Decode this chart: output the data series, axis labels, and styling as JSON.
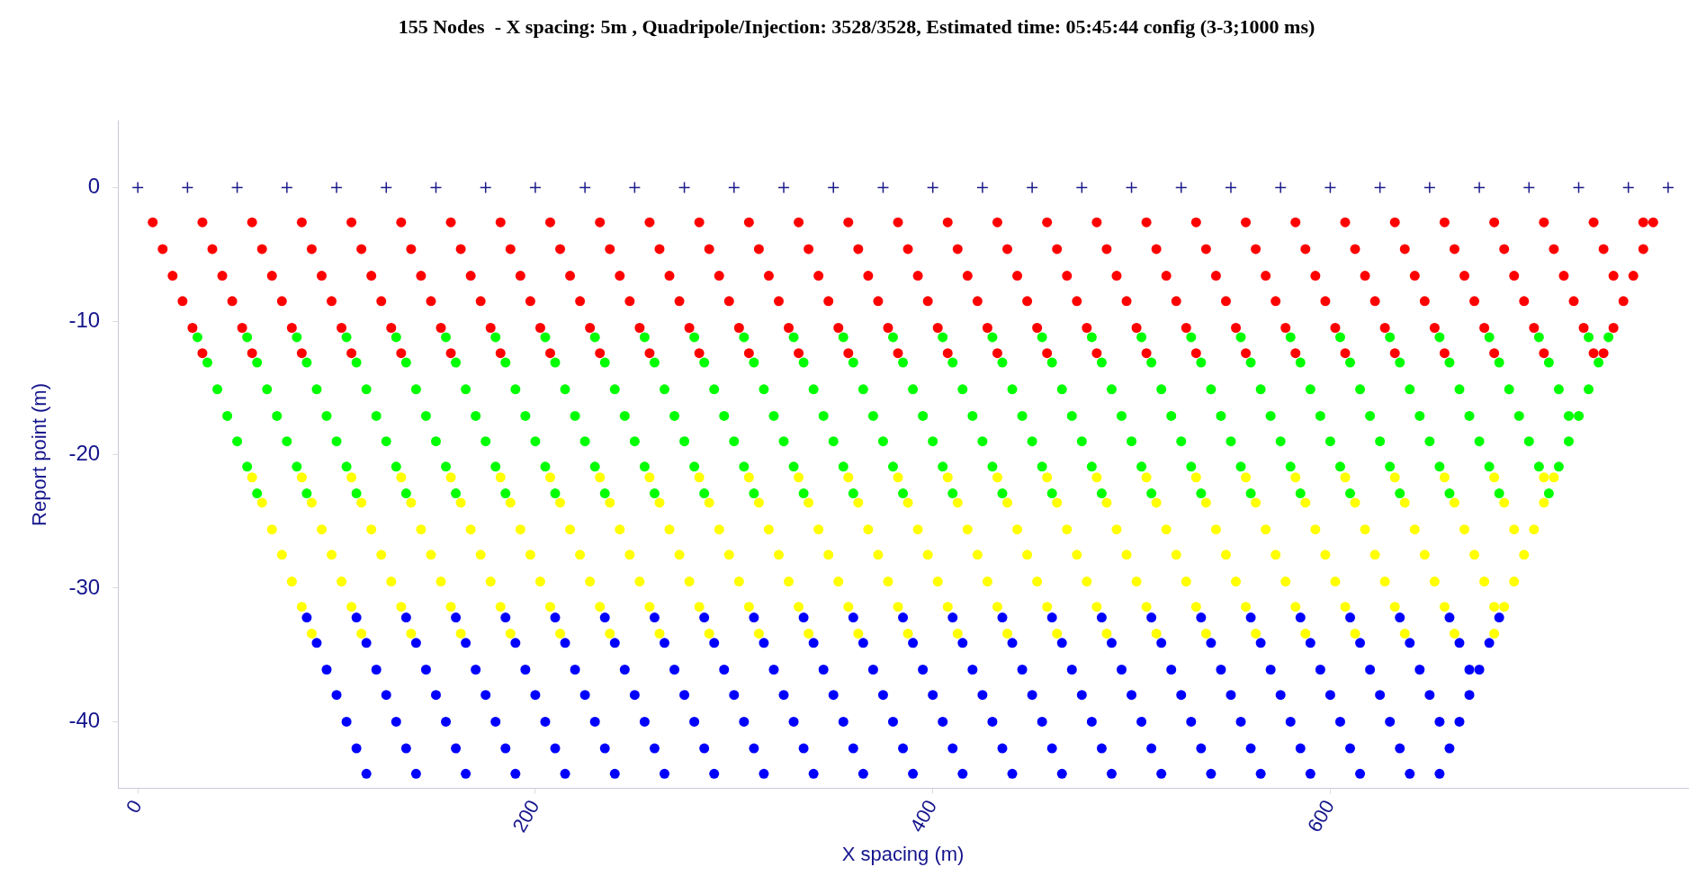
{
  "chart_data": {
    "type": "scatter",
    "title": "155 Nodes  - X spacing: 5m , Quadripole/Injection: 3528/3528, Estimated time: 05:45:44 config (3-3;1000 ms)",
    "xlabel": "X spacing (m)",
    "ylabel": "Report point (m)",
    "xlim": [
      -10,
      780
    ],
    "xticks": [
      0,
      200,
      400,
      600
    ],
    "ylim": [
      -45,
      5
    ],
    "yticks": [
      0,
      -10,
      -20,
      -30,
      -40
    ],
    "marker": "circle",
    "series": [
      {
        "color": "#1c1c8c",
        "marker": "cross",
        "x": [
          0,
          25,
          50,
          75,
          100,
          125,
          150,
          175,
          200,
          225,
          250,
          275,
          300,
          325,
          350,
          375,
          400,
          425,
          450,
          475,
          500,
          525,
          550,
          575,
          600,
          625,
          650,
          675,
          700,
          725,
          750,
          770
        ],
        "values": [
          0,
          0,
          0,
          0,
          0,
          0,
          0,
          0,
          0,
          0,
          0,
          0,
          0,
          0,
          0,
          0,
          0,
          0,
          0,
          0,
          0,
          0,
          0,
          0,
          0,
          0,
          0,
          0,
          0,
          0,
          0,
          0
        ]
      },
      {
        "color": "#ff0000",
        "x": [
          7.5,
          32.5,
          57.5,
          82.5,
          107.5,
          132.5,
          157.5,
          182.5,
          207.5,
          232.5,
          257.5,
          282.5,
          307.5,
          332.5,
          357.5,
          382.5,
          407.5,
          432.5,
          457.5,
          482.5,
          507.5,
          532.5,
          557.5,
          582.5,
          607.5,
          632.5,
          657.5,
          682.5,
          707.5,
          732.5,
          757.5,
          762.5
        ],
        "values": [
          -2.6,
          -2.6,
          -2.6,
          -2.6,
          -2.6,
          -2.6,
          -2.6,
          -2.6,
          -2.6,
          -2.6,
          -2.6,
          -2.6,
          -2.6,
          -2.6,
          -2.6,
          -2.6,
          -2.6,
          -2.6,
          -2.6,
          -2.6,
          -2.6,
          -2.6,
          -2.6,
          -2.6,
          -2.6,
          -2.6,
          -2.6,
          -2.6,
          -2.6,
          -2.6,
          -2.6,
          -2.6
        ]
      },
      {
        "color": "#ff0000",
        "x": [
          12.5,
          37.5,
          62.5,
          87.5,
          112.5,
          137.5,
          162.5,
          187.5,
          212.5,
          237.5,
          262.5,
          287.5,
          312.5,
          337.5,
          362.5,
          387.5,
          412.5,
          437.5,
          462.5,
          487.5,
          512.5,
          537.5,
          562.5,
          587.5,
          612.5,
          637.5,
          662.5,
          687.5,
          712.5,
          737.5,
          757.5
        ],
        "values": [
          -4.6,
          -4.6,
          -4.6,
          -4.6,
          -4.6,
          -4.6,
          -4.6,
          -4.6,
          -4.6,
          -4.6,
          -4.6,
          -4.6,
          -4.6,
          -4.6,
          -4.6,
          -4.6,
          -4.6,
          -4.6,
          -4.6,
          -4.6,
          -4.6,
          -4.6,
          -4.6,
          -4.6,
          -4.6,
          -4.6,
          -4.6,
          -4.6,
          -4.6,
          -4.6,
          -4.6
        ]
      },
      {
        "color": "#ff0000",
        "x": [
          17.5,
          42.5,
          67.5,
          92.5,
          117.5,
          142.5,
          167.5,
          192.5,
          217.5,
          242.5,
          267.5,
          292.5,
          317.5,
          342.5,
          367.5,
          392.5,
          417.5,
          442.5,
          467.5,
          492.5,
          517.5,
          542.5,
          567.5,
          592.5,
          617.5,
          642.5,
          667.5,
          692.5,
          717.5,
          742.5,
          752.5
        ],
        "values": [
          -6.6,
          -6.6,
          -6.6,
          -6.6,
          -6.6,
          -6.6,
          -6.6,
          -6.6,
          -6.6,
          -6.6,
          -6.6,
          -6.6,
          -6.6,
          -6.6,
          -6.6,
          -6.6,
          -6.6,
          -6.6,
          -6.6,
          -6.6,
          -6.6,
          -6.6,
          -6.6,
          -6.6,
          -6.6,
          -6.6,
          -6.6,
          -6.6,
          -6.6,
          -6.6,
          -6.6
        ]
      },
      {
        "color": "#ff0000",
        "x": [
          22.5,
          47.5,
          72.5,
          97.5,
          122.5,
          147.5,
          172.5,
          197.5,
          222.5,
          247.5,
          272.5,
          297.5,
          322.5,
          347.5,
          372.5,
          397.5,
          422.5,
          447.5,
          472.5,
          497.5,
          522.5,
          547.5,
          572.5,
          597.5,
          622.5,
          647.5,
          672.5,
          697.5,
          722.5,
          747.5
        ],
        "values": [
          -8.5,
          -8.5,
          -8.5,
          -8.5,
          -8.5,
          -8.5,
          -8.5,
          -8.5,
          -8.5,
          -8.5,
          -8.5,
          -8.5,
          -8.5,
          -8.5,
          -8.5,
          -8.5,
          -8.5,
          -8.5,
          -8.5,
          -8.5,
          -8.5,
          -8.5,
          -8.5,
          -8.5,
          -8.5,
          -8.5,
          -8.5,
          -8.5,
          -8.5,
          -8.5
        ]
      },
      {
        "color": "#ff0000",
        "x": [
          27.5,
          52.5,
          77.5,
          102.5,
          127.5,
          152.5,
          177.5,
          202.5,
          227.5,
          252.5,
          277.5,
          302.5,
          327.5,
          352.5,
          377.5,
          402.5,
          427.5,
          452.5,
          477.5,
          502.5,
          527.5,
          552.5,
          577.5,
          602.5,
          627.5,
          652.5,
          677.5,
          702.5,
          727.5,
          742.5
        ],
        "values": [
          -10.5,
          -10.5,
          -10.5,
          -10.5,
          -10.5,
          -10.5,
          -10.5,
          -10.5,
          -10.5,
          -10.5,
          -10.5,
          -10.5,
          -10.5,
          -10.5,
          -10.5,
          -10.5,
          -10.5,
          -10.5,
          -10.5,
          -10.5,
          -10.5,
          -10.5,
          -10.5,
          -10.5,
          -10.5,
          -10.5,
          -10.5,
          -10.5,
          -10.5,
          -10.5
        ]
      },
      {
        "color": "#ff0000",
        "x": [
          32.5,
          57.5,
          82.5,
          107.5,
          132.5,
          157.5,
          182.5,
          207.5,
          232.5,
          257.5,
          282.5,
          307.5,
          332.5,
          357.5,
          382.5,
          407.5,
          432.5,
          457.5,
          482.5,
          507.5,
          532.5,
          557.5,
          582.5,
          607.5,
          632.5,
          657.5,
          682.5,
          707.5,
          732.5,
          737.5
        ],
        "values": [
          -12.4,
          -12.4,
          -12.4,
          -12.4,
          -12.4,
          -12.4,
          -12.4,
          -12.4,
          -12.4,
          -12.4,
          -12.4,
          -12.4,
          -12.4,
          -12.4,
          -12.4,
          -12.4,
          -12.4,
          -12.4,
          -12.4,
          -12.4,
          -12.4,
          -12.4,
          -12.4,
          -12.4,
          -12.4,
          -12.4,
          -12.4,
          -12.4,
          -12.4,
          -12.4
        ]
      },
      {
        "color": "#00ff00",
        "x": [
          30,
          55,
          80,
          105,
          130,
          155,
          180,
          205,
          230,
          255,
          280,
          305,
          330,
          355,
          380,
          405,
          430,
          455,
          480,
          505,
          530,
          555,
          580,
          605,
          630,
          655,
          680,
          705,
          730,
          740
        ],
        "values": [
          -11.2,
          -11.2,
          -11.2,
          -11.2,
          -11.2,
          -11.2,
          -11.2,
          -11.2,
          -11.2,
          -11.2,
          -11.2,
          -11.2,
          -11.2,
          -11.2,
          -11.2,
          -11.2,
          -11.2,
          -11.2,
          -11.2,
          -11.2,
          -11.2,
          -11.2,
          -11.2,
          -11.2,
          -11.2,
          -11.2,
          -11.2,
          -11.2,
          -11.2,
          -11.2
        ]
      },
      {
        "color": "#00ff00",
        "x": [
          35,
          60,
          85,
          110,
          135,
          160,
          185,
          210,
          235,
          260,
          285,
          310,
          335,
          360,
          385,
          410,
          435,
          460,
          485,
          510,
          535,
          560,
          585,
          610,
          635,
          660,
          685,
          710,
          735
        ],
        "values": [
          -13.1,
          -13.1,
          -13.1,
          -13.1,
          -13.1,
          -13.1,
          -13.1,
          -13.1,
          -13.1,
          -13.1,
          -13.1,
          -13.1,
          -13.1,
          -13.1,
          -13.1,
          -13.1,
          -13.1,
          -13.1,
          -13.1,
          -13.1,
          -13.1,
          -13.1,
          -13.1,
          -13.1,
          -13.1,
          -13.1,
          -13.1,
          -13.1,
          -13.1
        ]
      },
      {
        "color": "#00ff00",
        "x": [
          40,
          65,
          90,
          115,
          140,
          165,
          190,
          215,
          240,
          265,
          290,
          315,
          340,
          365,
          390,
          415,
          440,
          465,
          490,
          515,
          540,
          565,
          590,
          615,
          640,
          665,
          690,
          715,
          730
        ],
        "values": [
          -15.1,
          -15.1,
          -15.1,
          -15.1,
          -15.1,
          -15.1,
          -15.1,
          -15.1,
          -15.1,
          -15.1,
          -15.1,
          -15.1,
          -15.1,
          -15.1,
          -15.1,
          -15.1,
          -15.1,
          -15.1,
          -15.1,
          -15.1,
          -15.1,
          -15.1,
          -15.1,
          -15.1,
          -15.1,
          -15.1,
          -15.1,
          -15.1,
          -15.1
        ]
      },
      {
        "color": "#00ff00",
        "x": [
          45,
          70,
          95,
          120,
          145,
          170,
          195,
          220,
          245,
          270,
          295,
          320,
          345,
          370,
          395,
          420,
          445,
          470,
          495,
          520,
          545,
          570,
          595,
          620,
          645,
          670,
          695,
          720,
          725
        ],
        "values": [
          -17.1,
          -17.1,
          -17.1,
          -17.1,
          -17.1,
          -17.1,
          -17.1,
          -17.1,
          -17.1,
          -17.1,
          -17.1,
          -17.1,
          -17.1,
          -17.1,
          -17.1,
          -17.1,
          -17.1,
          -17.1,
          -17.1,
          -17.1,
          -17.1,
          -17.1,
          -17.1,
          -17.1,
          -17.1,
          -17.1,
          -17.1,
          -17.1,
          -17.1
        ]
      },
      {
        "color": "#00ff00",
        "x": [
          50,
          75,
          100,
          125,
          150,
          175,
          200,
          225,
          250,
          275,
          300,
          325,
          350,
          375,
          400,
          425,
          450,
          475,
          500,
          525,
          550,
          575,
          600,
          625,
          650,
          675,
          700,
          720
        ],
        "values": [
          -19.0,
          -19.0,
          -19.0,
          -19.0,
          -19.0,
          -19.0,
          -19.0,
          -19.0,
          -19.0,
          -19.0,
          -19.0,
          -19.0,
          -19.0,
          -19.0,
          -19.0,
          -19.0,
          -19.0,
          -19.0,
          -19.0,
          -19.0,
          -19.0,
          -19.0,
          -19.0,
          -19.0,
          -19.0,
          -19.0,
          -19.0,
          -19.0
        ]
      },
      {
        "color": "#00ff00",
        "x": [
          55,
          80,
          105,
          130,
          155,
          180,
          205,
          230,
          255,
          280,
          305,
          330,
          355,
          380,
          405,
          430,
          455,
          480,
          505,
          530,
          555,
          580,
          605,
          630,
          655,
          680,
          705,
          715
        ],
        "values": [
          -20.9,
          -20.9,
          -20.9,
          -20.9,
          -20.9,
          -20.9,
          -20.9,
          -20.9,
          -20.9,
          -20.9,
          -20.9,
          -20.9,
          -20.9,
          -20.9,
          -20.9,
          -20.9,
          -20.9,
          -20.9,
          -20.9,
          -20.9,
          -20.9,
          -20.9,
          -20.9,
          -20.9,
          -20.9,
          -20.9,
          -20.9,
          -20.9
        ]
      },
      {
        "color": "#00ff00",
        "x": [
          60,
          85,
          110,
          135,
          160,
          185,
          210,
          235,
          260,
          285,
          310,
          335,
          360,
          385,
          410,
          435,
          460,
          485,
          510,
          535,
          560,
          585,
          610,
          635,
          660,
          685,
          710
        ],
        "values": [
          -22.9,
          -22.9,
          -22.9,
          -22.9,
          -22.9,
          -22.9,
          -22.9,
          -22.9,
          -22.9,
          -22.9,
          -22.9,
          -22.9,
          -22.9,
          -22.9,
          -22.9,
          -22.9,
          -22.9,
          -22.9,
          -22.9,
          -22.9,
          -22.9,
          -22.9,
          -22.9,
          -22.9,
          -22.9,
          -22.9,
          -22.9
        ]
      },
      {
        "color": "#ffff00",
        "x": [
          57.5,
          82.5,
          107.5,
          132.5,
          157.5,
          182.5,
          207.5,
          232.5,
          257.5,
          282.5,
          307.5,
          332.5,
          357.5,
          382.5,
          407.5,
          432.5,
          457.5,
          482.5,
          507.5,
          532.5,
          557.5,
          582.5,
          607.5,
          632.5,
          657.5,
          682.5,
          707.5,
          712.5
        ],
        "values": [
          -21.7,
          -21.7,
          -21.7,
          -21.7,
          -21.7,
          -21.7,
          -21.7,
          -21.7,
          -21.7,
          -21.7,
          -21.7,
          -21.7,
          -21.7,
          -21.7,
          -21.7,
          -21.7,
          -21.7,
          -21.7,
          -21.7,
          -21.7,
          -21.7,
          -21.7,
          -21.7,
          -21.7,
          -21.7,
          -21.7,
          -21.7,
          -21.7
        ]
      },
      {
        "color": "#ffff00",
        "x": [
          62.5,
          87.5,
          112.5,
          137.5,
          162.5,
          187.5,
          212.5,
          237.5,
          262.5,
          287.5,
          312.5,
          337.5,
          362.5,
          387.5,
          412.5,
          437.5,
          462.5,
          487.5,
          512.5,
          537.5,
          562.5,
          587.5,
          612.5,
          637.5,
          662.5,
          687.5,
          707.5
        ],
        "values": [
          -23.6,
          -23.6,
          -23.6,
          -23.6,
          -23.6,
          -23.6,
          -23.6,
          -23.6,
          -23.6,
          -23.6,
          -23.6,
          -23.6,
          -23.6,
          -23.6,
          -23.6,
          -23.6,
          -23.6,
          -23.6,
          -23.6,
          -23.6,
          -23.6,
          -23.6,
          -23.6,
          -23.6,
          -23.6,
          -23.6,
          -23.6
        ]
      },
      {
        "color": "#ffff00",
        "x": [
          67.5,
          92.5,
          117.5,
          142.5,
          167.5,
          192.5,
          217.5,
          242.5,
          267.5,
          292.5,
          317.5,
          342.5,
          367.5,
          392.5,
          417.5,
          442.5,
          467.5,
          492.5,
          517.5,
          542.5,
          567.5,
          592.5,
          617.5,
          642.5,
          667.5,
          692.5,
          702.5
        ],
        "values": [
          -25.6,
          -25.6,
          -25.6,
          -25.6,
          -25.6,
          -25.6,
          -25.6,
          -25.6,
          -25.6,
          -25.6,
          -25.6,
          -25.6,
          -25.6,
          -25.6,
          -25.6,
          -25.6,
          -25.6,
          -25.6,
          -25.6,
          -25.6,
          -25.6,
          -25.6,
          -25.6,
          -25.6,
          -25.6,
          -25.6,
          -25.6
        ]
      },
      {
        "color": "#ffff00",
        "x": [
          72.5,
          97.5,
          122.5,
          147.5,
          172.5,
          197.5,
          222.5,
          247.5,
          272.5,
          297.5,
          322.5,
          347.5,
          372.5,
          397.5,
          422.5,
          447.5,
          472.5,
          497.5,
          522.5,
          547.5,
          572.5,
          597.5,
          622.5,
          647.5,
          672.5,
          697.5
        ],
        "values": [
          -27.5,
          -27.5,
          -27.5,
          -27.5,
          -27.5,
          -27.5,
          -27.5,
          -27.5,
          -27.5,
          -27.5,
          -27.5,
          -27.5,
          -27.5,
          -27.5,
          -27.5,
          -27.5,
          -27.5,
          -27.5,
          -27.5,
          -27.5,
          -27.5,
          -27.5,
          -27.5,
          -27.5,
          -27.5,
          -27.5
        ]
      },
      {
        "color": "#ffff00",
        "x": [
          77.5,
          102.5,
          127.5,
          152.5,
          177.5,
          202.5,
          227.5,
          252.5,
          277.5,
          302.5,
          327.5,
          352.5,
          377.5,
          402.5,
          427.5,
          452.5,
          477.5,
          502.5,
          527.5,
          552.5,
          577.5,
          602.5,
          627.5,
          652.5,
          677.5,
          692.5
        ],
        "values": [
          -29.5,
          -29.5,
          -29.5,
          -29.5,
          -29.5,
          -29.5,
          -29.5,
          -29.5,
          -29.5,
          -29.5,
          -29.5,
          -29.5,
          -29.5,
          -29.5,
          -29.5,
          -29.5,
          -29.5,
          -29.5,
          -29.5,
          -29.5,
          -29.5,
          -29.5,
          -29.5,
          -29.5,
          -29.5,
          -29.5
        ]
      },
      {
        "color": "#ffff00",
        "x": [
          82.5,
          107.5,
          132.5,
          157.5,
          182.5,
          207.5,
          232.5,
          257.5,
          282.5,
          307.5,
          332.5,
          357.5,
          382.5,
          407.5,
          432.5,
          457.5,
          482.5,
          507.5,
          532.5,
          557.5,
          582.5,
          607.5,
          632.5,
          657.5,
          682.5,
          687.5
        ],
        "values": [
          -31.4,
          -31.4,
          -31.4,
          -31.4,
          -31.4,
          -31.4,
          -31.4,
          -31.4,
          -31.4,
          -31.4,
          -31.4,
          -31.4,
          -31.4,
          -31.4,
          -31.4,
          -31.4,
          -31.4,
          -31.4,
          -31.4,
          -31.4,
          -31.4,
          -31.4,
          -31.4,
          -31.4,
          -31.4,
          -31.4
        ]
      },
      {
        "color": "#ffff00",
        "x": [
          87.5,
          112.5,
          137.5,
          162.5,
          187.5,
          212.5,
          237.5,
          262.5,
          287.5,
          312.5,
          337.5,
          362.5,
          387.5,
          412.5,
          437.5,
          462.5,
          487.5,
          512.5,
          537.5,
          562.5,
          587.5,
          612.5,
          637.5,
          662.5,
          682.5
        ],
        "values": [
          -33.4,
          -33.4,
          -33.4,
          -33.4,
          -33.4,
          -33.4,
          -33.4,
          -33.4,
          -33.4,
          -33.4,
          -33.4,
          -33.4,
          -33.4,
          -33.4,
          -33.4,
          -33.4,
          -33.4,
          -33.4,
          -33.4,
          -33.4,
          -33.4,
          -33.4,
          -33.4,
          -33.4,
          -33.4
        ]
      },
      {
        "color": "#0000ff",
        "x": [
          85,
          110,
          135,
          160,
          185,
          210,
          235,
          260,
          285,
          310,
          335,
          360,
          385,
          410,
          435,
          460,
          485,
          510,
          535,
          560,
          585,
          610,
          635,
          660,
          685
        ],
        "values": [
          -32.2,
          -32.2,
          -32.2,
          -32.2,
          -32.2,
          -32.2,
          -32.2,
          -32.2,
          -32.2,
          -32.2,
          -32.2,
          -32.2,
          -32.2,
          -32.2,
          -32.2,
          -32.2,
          -32.2,
          -32.2,
          -32.2,
          -32.2,
          -32.2,
          -32.2,
          -32.2,
          -32.2,
          -32.2
        ]
      },
      {
        "color": "#0000ff",
        "x": [
          90,
          115,
          140,
          165,
          190,
          215,
          240,
          265,
          290,
          315,
          340,
          365,
          390,
          415,
          440,
          465,
          490,
          515,
          540,
          565,
          590,
          615,
          640,
          665,
          680
        ],
        "values": [
          -34.1,
          -34.1,
          -34.1,
          -34.1,
          -34.1,
          -34.1,
          -34.1,
          -34.1,
          -34.1,
          -34.1,
          -34.1,
          -34.1,
          -34.1,
          -34.1,
          -34.1,
          -34.1,
          -34.1,
          -34.1,
          -34.1,
          -34.1,
          -34.1,
          -34.1,
          -34.1,
          -34.1,
          -34.1
        ]
      },
      {
        "color": "#0000ff",
        "x": [
          95,
          120,
          145,
          170,
          195,
          220,
          245,
          270,
          295,
          320,
          345,
          370,
          395,
          420,
          445,
          470,
          495,
          520,
          545,
          570,
          595,
          620,
          645,
          670,
          675
        ],
        "values": [
          -36.1,
          -36.1,
          -36.1,
          -36.1,
          -36.1,
          -36.1,
          -36.1,
          -36.1,
          -36.1,
          -36.1,
          -36.1,
          -36.1,
          -36.1,
          -36.1,
          -36.1,
          -36.1,
          -36.1,
          -36.1,
          -36.1,
          -36.1,
          -36.1,
          -36.1,
          -36.1,
          -36.1,
          -36.1
        ]
      },
      {
        "color": "#0000ff",
        "x": [
          100,
          125,
          150,
          175,
          200,
          225,
          250,
          275,
          300,
          325,
          350,
          375,
          400,
          425,
          450,
          475,
          500,
          525,
          550,
          575,
          600,
          625,
          650,
          670
        ],
        "values": [
          -38.0,
          -38.0,
          -38.0,
          -38.0,
          -38.0,
          -38.0,
          -38.0,
          -38.0,
          -38.0,
          -38.0,
          -38.0,
          -38.0,
          -38.0,
          -38.0,
          -38.0,
          -38.0,
          -38.0,
          -38.0,
          -38.0,
          -38.0,
          -38.0,
          -38.0,
          -38.0,
          -38.0
        ]
      },
      {
        "color": "#0000ff",
        "x": [
          105,
          130,
          155,
          180,
          205,
          230,
          255,
          280,
          305,
          330,
          355,
          380,
          405,
          430,
          455,
          480,
          505,
          530,
          555,
          580,
          605,
          630,
          655,
          665
        ],
        "values": [
          -40.0,
          -40.0,
          -40.0,
          -40.0,
          -40.0,
          -40.0,
          -40.0,
          -40.0,
          -40.0,
          -40.0,
          -40.0,
          -40.0,
          -40.0,
          -40.0,
          -40.0,
          -40.0,
          -40.0,
          -40.0,
          -40.0,
          -40.0,
          -40.0,
          -40.0,
          -40.0,
          -40.0
        ]
      },
      {
        "color": "#0000ff",
        "x": [
          110,
          135,
          160,
          185,
          210,
          235,
          260,
          285,
          310,
          335,
          360,
          385,
          410,
          435,
          460,
          485,
          510,
          535,
          560,
          585,
          610,
          635,
          660
        ],
        "values": [
          -42.0,
          -42.0,
          -42.0,
          -42.0,
          -42.0,
          -42.0,
          -42.0,
          -42.0,
          -42.0,
          -42.0,
          -42.0,
          -42.0,
          -42.0,
          -42.0,
          -42.0,
          -42.0,
          -42.0,
          -42.0,
          -42.0,
          -42.0,
          -42.0,
          -42.0,
          -42.0
        ]
      },
      {
        "color": "#0000ff",
        "x": [
          115,
          140,
          165,
          190,
          215,
          240,
          265,
          290,
          315,
          340,
          365,
          390,
          415,
          440,
          465,
          490,
          515,
          540,
          565,
          590,
          615,
          640,
          655
        ],
        "values": [
          -43.9,
          -43.9,
          -43.9,
          -43.9,
          -43.9,
          -43.9,
          -43.9,
          -43.9,
          -43.9,
          -43.9,
          -43.9,
          -43.9,
          -43.9,
          -43.9,
          -43.9,
          -43.9,
          -43.9,
          -43.9,
          -43.9,
          -43.9,
          -43.9,
          -43.9,
          -43.9
        ]
      }
    ]
  }
}
